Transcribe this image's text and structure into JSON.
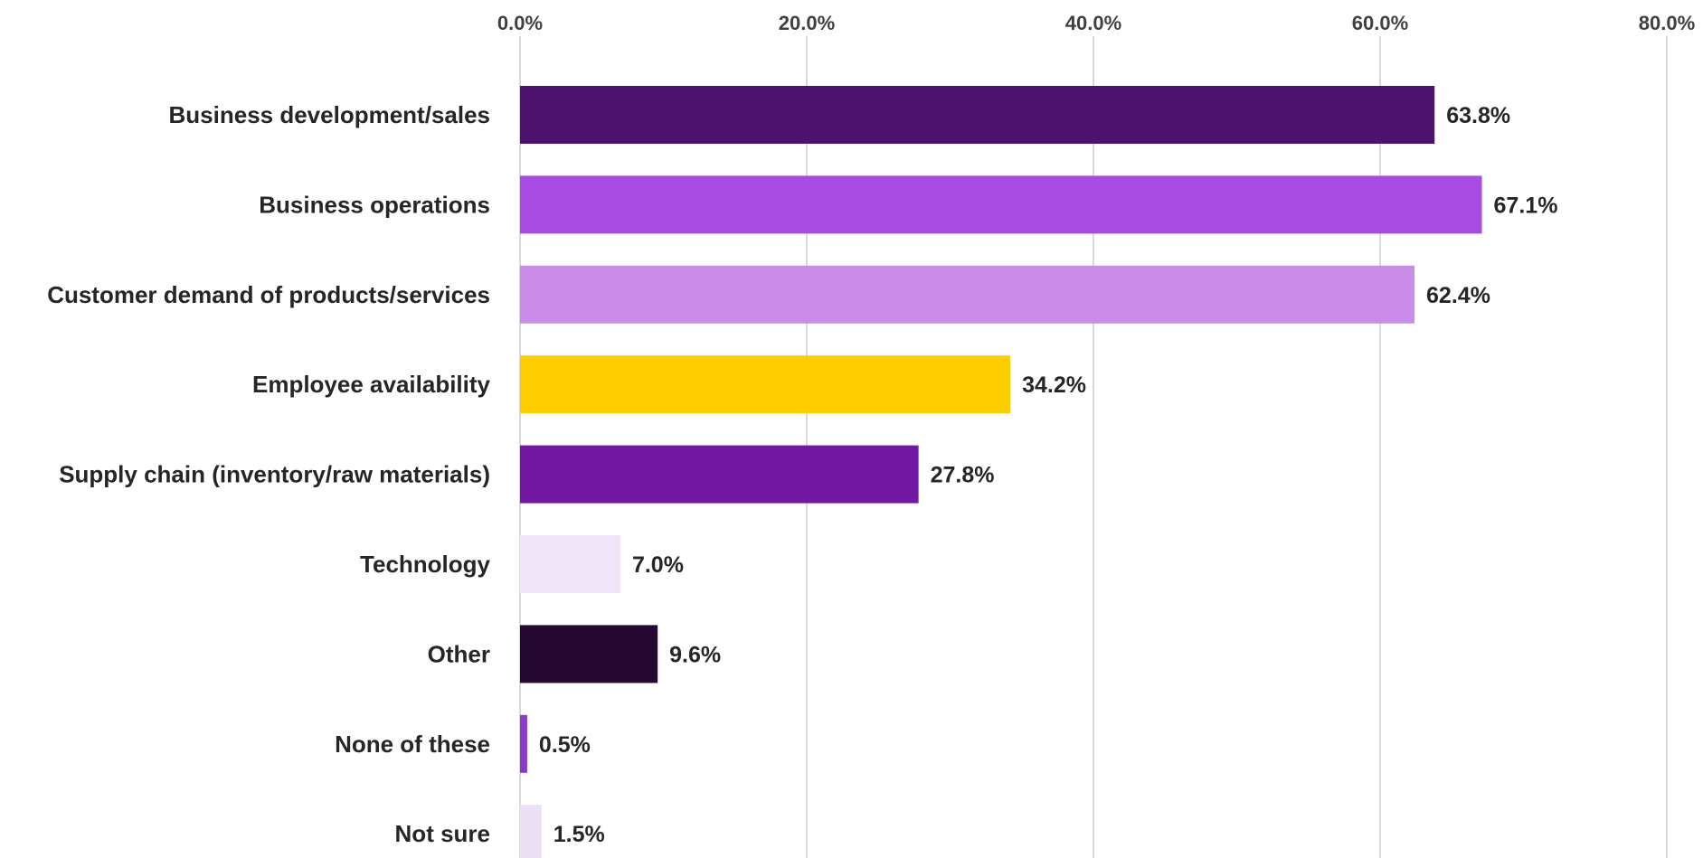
{
  "chart_data": {
    "type": "bar",
    "orientation": "horizontal",
    "categories": [
      "Business development/sales",
      "Business operations",
      "Customer demand of products/services",
      "Employee availability",
      "Supply chain (inventory/raw materials)",
      "Technology",
      "Other",
      "None of these",
      "Not sure"
    ],
    "values": [
      63.8,
      67.1,
      62.4,
      34.2,
      27.8,
      7.0,
      9.6,
      0.5,
      1.5
    ],
    "value_labels": [
      "63.8%",
      "67.1%",
      "62.4%",
      "34.2%",
      "27.8%",
      "7.0%",
      "9.6%",
      "0.5%",
      "1.5%"
    ],
    "bar_colors": [
      "#4b136c",
      "#a64ce3",
      "#c98de9",
      "#ffcc00",
      "#7119a3",
      "#f0e4f8",
      "#250932",
      "#8a3cc4",
      "#ece0f5"
    ],
    "xlim": [
      0,
      80
    ],
    "x_ticks": [
      0,
      20,
      40,
      60,
      80
    ],
    "x_tick_labels": [
      "0.0%",
      "20.0%",
      "40.0%",
      "60.0%",
      "80.0%"
    ],
    "x_axis_position": "top",
    "grid": true,
    "legend": false
  }
}
